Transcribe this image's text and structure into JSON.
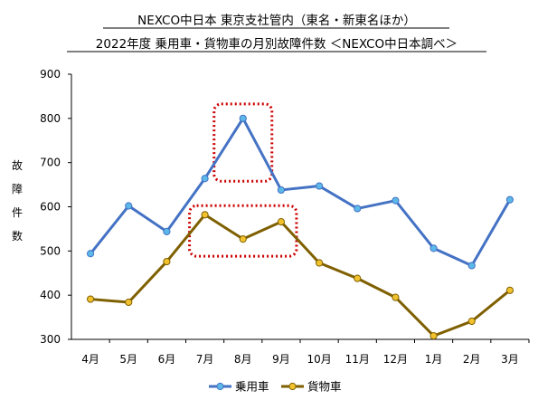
{
  "chart_data": {
    "type": "line",
    "title": "NEXCO中日本 東京支社管内（東名・新東名ほか）",
    "subtitle": "2022年度 乗用車・貨物車の月別故障件数 ＜NEXCO中日本調べ＞",
    "ylabel": "故障件数",
    "xlabel": "",
    "categories": [
      "4月",
      "5月",
      "6月",
      "7月",
      "8月",
      "9月",
      "10月",
      "11月",
      "12月",
      "1月",
      "2月",
      "3月"
    ],
    "yticks": [
      "300",
      "400",
      "500",
      "600",
      "700",
      "800",
      "900"
    ],
    "ylim": [
      300,
      900
    ],
    "grid": false,
    "legend_position": "bottom",
    "series": [
      {
        "name": "乗用車",
        "color": "#4472C4",
        "marker_color": "#5BB8E8",
        "values": [
          494,
          602,
          544,
          664,
          800,
          638,
          647,
          596,
          614,
          506,
          467,
          616
        ]
      },
      {
        "name": "貨物車",
        "color": "#7F6000",
        "marker_color": "#F2C12E",
        "values": [
          391,
          384,
          476,
          582,
          527,
          566,
          473,
          438,
          395,
          308,
          341,
          411
        ]
      }
    ],
    "highlight_color": "#CC0000"
  }
}
